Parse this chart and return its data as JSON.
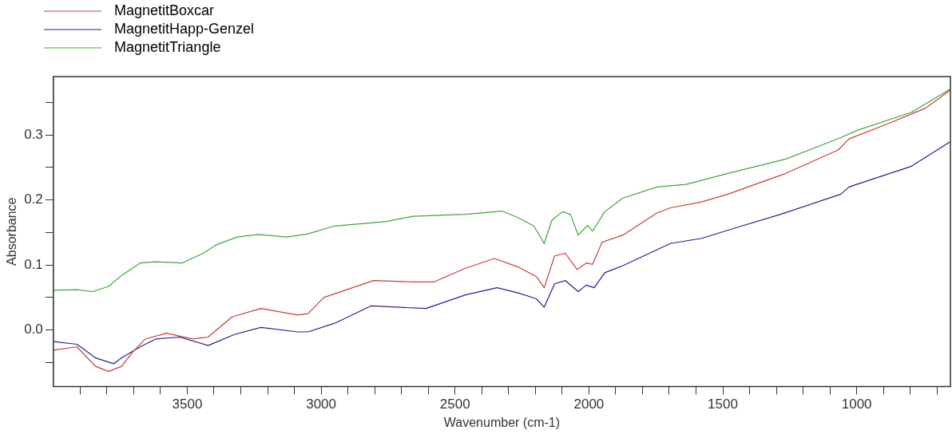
{
  "chart_data": {
    "type": "line",
    "xlabel": "Wavenumber (cm-1)",
    "ylabel": "Absorbance",
    "legend": "top left",
    "grid": false,
    "marker": "none",
    "line_style": "solid",
    "xlim": [
      4000,
      650
    ],
    "xticks": [
      {
        "value": 3900,
        "label": null
      },
      {
        "value": 3800,
        "label": null
      },
      {
        "value": 3700,
        "label": null
      },
      {
        "value": 3600,
        "label": null
      },
      3500,
      {
        "value": 3400,
        "label": null
      },
      {
        "value": 3300,
        "label": null
      },
      {
        "value": 3200,
        "label": null
      },
      {
        "value": 3100,
        "label": null
      },
      3000,
      {
        "value": 2900,
        "label": null
      },
      {
        "value": 2800,
        "label": null
      },
      {
        "value": 2700,
        "label": null
      },
      {
        "value": 2600,
        "label": null
      },
      2500,
      {
        "value": 2400,
        "label": null
      },
      {
        "value": 2300,
        "label": null
      },
      {
        "value": 2200,
        "label": null
      },
      {
        "value": 2100,
        "label": null
      },
      2000,
      {
        "value": 1900,
        "label": null
      },
      {
        "value": 1800,
        "label": null
      },
      {
        "value": 1700,
        "label": null
      },
      {
        "value": 1600,
        "label": null
      },
      1500,
      {
        "value": 1400,
        "label": null
      },
      {
        "value": 1300,
        "label": null
      },
      {
        "value": 1200,
        "label": null
      },
      {
        "value": 1100,
        "label": null
      },
      1000,
      {
        "value": 900,
        "label": null
      },
      {
        "value": 800,
        "label": null
      },
      {
        "value": 700,
        "label": null
      }
    ],
    "ylim": [
      -0.087,
      0.39
    ],
    "yticks": [
      {
        "value": -0.05,
        "label": null
      },
      {
        "value": 0,
        "label": "0.0"
      },
      {
        "value": 0.05,
        "label": null
      },
      {
        "value": 0.1,
        "label": "0.1"
      },
      {
        "value": 0.15,
        "label": null
      },
      {
        "value": 0.2,
        "label": "0.2"
      },
      {
        "value": 0.25,
        "label": null
      },
      {
        "value": 0.3,
        "label": "0.3"
      },
      {
        "value": 0.35,
        "label": null
      }
    ],
    "series": [
      {
        "name": "MagnetitBoxcar",
        "color": "#c83c3c",
        "x": [
          4000,
          3912,
          3843,
          3794,
          3745,
          3706,
          3657,
          3578,
          3480,
          3422,
          3333,
          3225,
          3088,
          3049,
          2990,
          2804,
          2657,
          2578,
          2461,
          2353,
          2265,
          2196,
          2167,
          2128,
          2088,
          2044,
          2010,
          1986,
          1951,
          1873,
          1746,
          1696,
          1579,
          1481,
          1265,
          1069,
          1029,
          892,
          745,
          650
        ],
        "values": [
          -0.031,
          -0.026,
          -0.056,
          -0.064,
          -0.056,
          -0.035,
          -0.014,
          -0.005,
          -0.014,
          -0.011,
          0.02,
          0.033,
          0.023,
          0.025,
          0.05,
          0.076,
          0.074,
          0.074,
          0.095,
          0.11,
          0.097,
          0.082,
          0.065,
          0.114,
          0.118,
          0.093,
          0.103,
          0.101,
          0.135,
          0.146,
          0.18,
          0.188,
          0.197,
          0.209,
          0.241,
          0.277,
          0.294,
          0.316,
          0.341,
          0.369
        ]
      },
      {
        "name": "MagnetitHapp-Genzel",
        "color": "#23238c",
        "x": [
          4000,
          3912,
          3843,
          3775,
          3745,
          3676,
          3618,
          3529,
          3422,
          3324,
          3225,
          3088,
          3049,
          2951,
          2814,
          2608,
          2461,
          2343,
          2265,
          2196,
          2167,
          2128,
          2088,
          2040,
          2010,
          1980,
          1941,
          1873,
          1696,
          1579,
          1461,
          1284,
          1059,
          1029,
          795,
          650
        ],
        "values": [
          -0.018,
          -0.022,
          -0.043,
          -0.052,
          -0.043,
          -0.026,
          -0.014,
          -0.011,
          -0.024,
          -0.007,
          0.004,
          -0.003,
          -0.003,
          0.01,
          0.037,
          0.033,
          0.054,
          0.065,
          0.057,
          0.048,
          0.035,
          0.071,
          0.076,
          0.059,
          0.069,
          0.065,
          0.088,
          0.099,
          0.133,
          0.141,
          0.156,
          0.178,
          0.209,
          0.22,
          0.252,
          0.29
        ]
      },
      {
        "name": "MagnetitTriangle",
        "color": "#3aa83a",
        "x": [
          4000,
          3912,
          3853,
          3794,
          3745,
          3676,
          3618,
          3520,
          3441,
          3392,
          3314,
          3235,
          3128,
          3049,
          2951,
          2755,
          2657,
          2461,
          2324,
          2265,
          2206,
          2167,
          2138,
          2099,
          2069,
          2040,
          2005,
          1986,
          1941,
          1873,
          1746,
          1637,
          1481,
          1265,
          1059,
          1000,
          795,
          650
        ],
        "values": [
          0.061,
          0.062,
          0.059,
          0.067,
          0.084,
          0.103,
          0.105,
          0.103,
          0.118,
          0.131,
          0.143,
          0.147,
          0.143,
          0.148,
          0.16,
          0.167,
          0.175,
          0.178,
          0.183,
          0.173,
          0.16,
          0.133,
          0.169,
          0.182,
          0.178,
          0.146,
          0.161,
          0.152,
          0.182,
          0.203,
          0.22,
          0.224,
          0.241,
          0.263,
          0.296,
          0.307,
          0.335,
          0.371
        ]
      }
    ]
  }
}
